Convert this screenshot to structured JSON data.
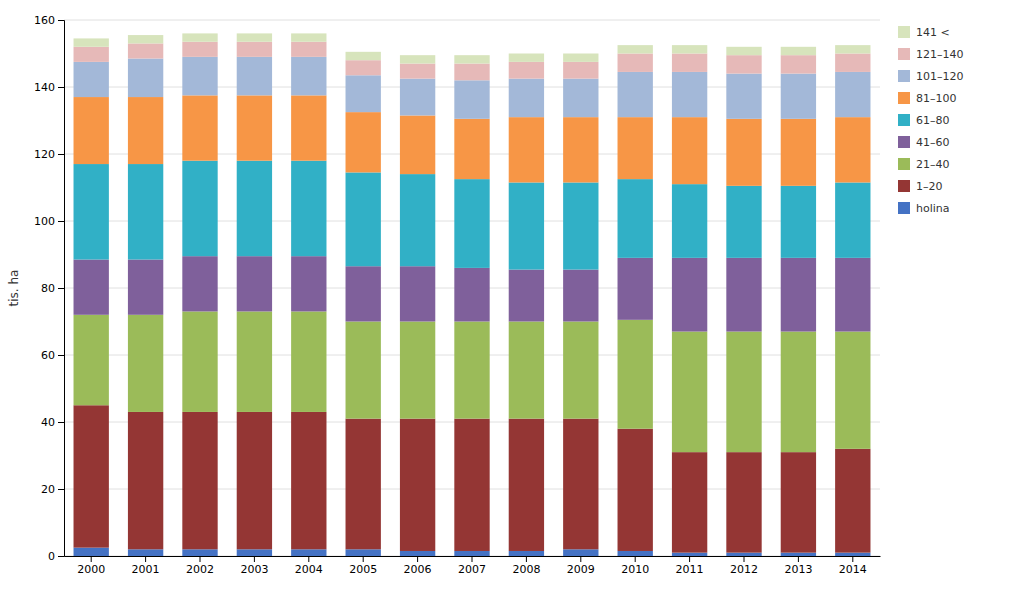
{
  "chart_data": {
    "type": "bar",
    "stacked": true,
    "ylabel": "tis. ha",
    "categories": [
      "2000",
      "2001",
      "2002",
      "2003",
      "2004",
      "2005",
      "2006",
      "2007",
      "2008",
      "2009",
      "2010",
      "2011",
      "2012",
      "2013",
      "2014"
    ],
    "series": [
      {
        "name": "holina",
        "color": "#4472c4",
        "values": [
          2.5,
          2.0,
          2.0,
          2.0,
          2.0,
          2.0,
          1.5,
          1.5,
          1.5,
          2.0,
          1.5,
          1.0,
          1.0,
          1.0,
          1.0
        ]
      },
      {
        "name": "1–20",
        "color": "#943634",
        "values": [
          42.5,
          41.0,
          41.0,
          41.0,
          41.0,
          39.0,
          39.5,
          39.5,
          39.5,
          39.0,
          36.5,
          30.0,
          30.0,
          30.0,
          31.0
        ]
      },
      {
        "name": "21–40",
        "color": "#9bbb59",
        "values": [
          27.0,
          29.0,
          30.0,
          30.0,
          30.0,
          29.0,
          29.0,
          29.0,
          29.0,
          29.0,
          32.5,
          36.0,
          36.0,
          36.0,
          35.0
        ]
      },
      {
        "name": "41–60",
        "color": "#7f609b",
        "values": [
          16.5,
          16.5,
          16.5,
          16.5,
          16.5,
          16.5,
          16.5,
          16.0,
          15.5,
          15.5,
          18.5,
          22.0,
          22.0,
          22.0,
          22.0
        ]
      },
      {
        "name": "61–80",
        "color": "#31b0c6",
        "values": [
          28.5,
          28.5,
          28.5,
          28.5,
          28.5,
          28.0,
          27.5,
          26.5,
          26.0,
          26.0,
          23.5,
          22.0,
          21.5,
          21.5,
          22.5
        ]
      },
      {
        "name": "81–100",
        "color": "#f79646",
        "values": [
          20.0,
          20.0,
          19.5,
          19.5,
          19.5,
          18.0,
          17.5,
          18.0,
          19.5,
          19.5,
          18.5,
          20.0,
          20.0,
          20.0,
          19.5
        ]
      },
      {
        "name": "101–120",
        "color": "#a3b8d8",
        "values": [
          10.5,
          11.5,
          11.5,
          11.5,
          11.5,
          11.0,
          11.0,
          11.5,
          11.5,
          11.5,
          13.5,
          13.5,
          13.5,
          13.5,
          13.5
        ]
      },
      {
        "name": "121–140",
        "color": "#e6b9b8",
        "values": [
          4.5,
          4.5,
          4.5,
          4.5,
          4.5,
          4.5,
          4.5,
          5.0,
          5.0,
          5.0,
          5.5,
          5.5,
          5.5,
          5.5,
          5.5
        ]
      },
      {
        "name": "141 <",
        "color": "#d7e4bc",
        "values": [
          2.5,
          2.5,
          2.5,
          2.5,
          2.5,
          2.5,
          2.5,
          2.5,
          2.5,
          2.5,
          2.5,
          2.5,
          2.5,
          2.5,
          2.5
        ]
      }
    ],
    "ylim": [
      0,
      160
    ],
    "yticks": [
      0,
      20,
      40,
      60,
      80,
      100,
      120,
      140,
      160
    ],
    "grid": true,
    "legend": "right"
  }
}
